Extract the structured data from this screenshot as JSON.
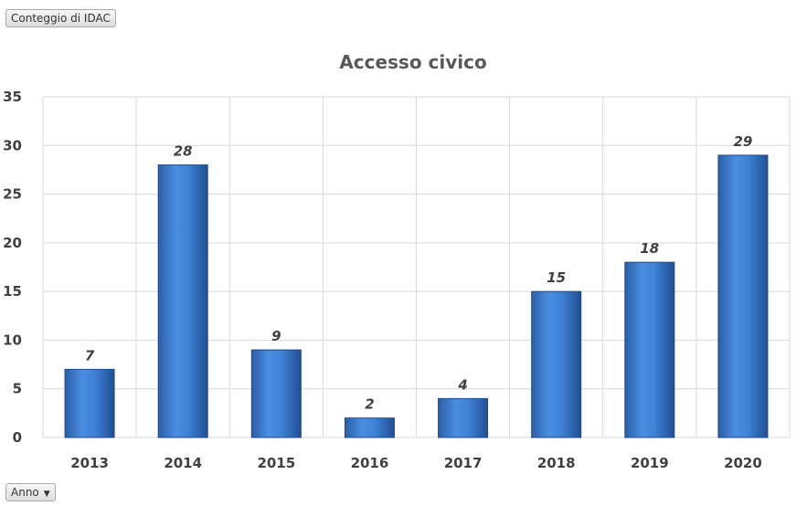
{
  "value_field_button": {
    "label": "Conteggio di IDAC"
  },
  "axis_field_button": {
    "label": "Anno",
    "dropdown_icon": "triangle-down"
  },
  "chart_data": {
    "type": "bar",
    "title": "Accesso civico",
    "categories": [
      "2013",
      "2014",
      "2015",
      "2016",
      "2017",
      "2018",
      "2019",
      "2020"
    ],
    "values": [
      7,
      28,
      9,
      2,
      4,
      15,
      18,
      29
    ],
    "ylim": [
      0,
      35
    ],
    "yticks": [
      0,
      5,
      10,
      15,
      20,
      25,
      30,
      35
    ],
    "data_labels": true,
    "grid": true,
    "bar_color": "#3a7bd5",
    "xlabel": "",
    "ylabel": ""
  }
}
